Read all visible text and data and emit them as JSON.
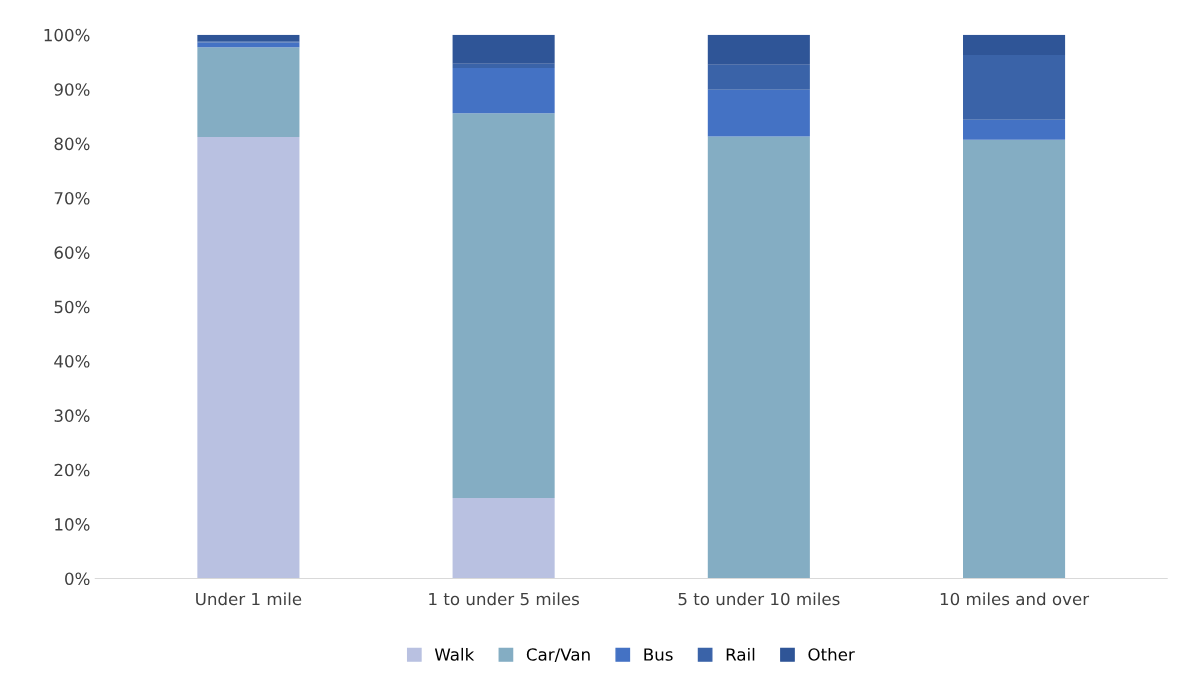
{
  "chart_data": {
    "type": "bar",
    "stacked": true,
    "categories": [
      "Under 1 mile",
      "1 to under 5 miles",
      "5 to under 10 miles",
      "10 miles and over"
    ],
    "series": [
      {
        "name": "Walk",
        "color": "#b9c1e1",
        "values": [
          81.2,
          14.8,
          0,
          0
        ]
      },
      {
        "name": "Car/Van",
        "color": "#84adc3",
        "values": [
          16.5,
          70.8,
          81.3,
          80.7
        ]
      },
      {
        "name": "Bus",
        "color": "#4472c4",
        "values": [
          0.9,
          8.3,
          8.6,
          3.7
        ]
      },
      {
        "name": "Rail",
        "color": "#3a63a8",
        "values": [
          0.2,
          0.8,
          4.6,
          11.9
        ]
      },
      {
        "name": "Other",
        "color": "#2f5597",
        "values": [
          1.2,
          5.3,
          5.5,
          3.7
        ]
      }
    ],
    "ylim": [
      0,
      100
    ],
    "yticks": [
      {
        "value": 0,
        "label": "0%"
      },
      {
        "value": 10,
        "label": "10%"
      },
      {
        "value": 20,
        "label": "20%"
      },
      {
        "value": 30,
        "label": "30%"
      },
      {
        "value": 40,
        "label": "40%"
      },
      {
        "value": 50,
        "label": "50%"
      },
      {
        "value": 60,
        "label": "60%"
      },
      {
        "value": 70,
        "label": "70%"
      },
      {
        "value": 80,
        "label": "80%"
      },
      {
        "value": 90,
        "label": "90%"
      },
      {
        "value": 100,
        "label": "100%"
      }
    ],
    "grid": false,
    "legend": "bottom"
  }
}
